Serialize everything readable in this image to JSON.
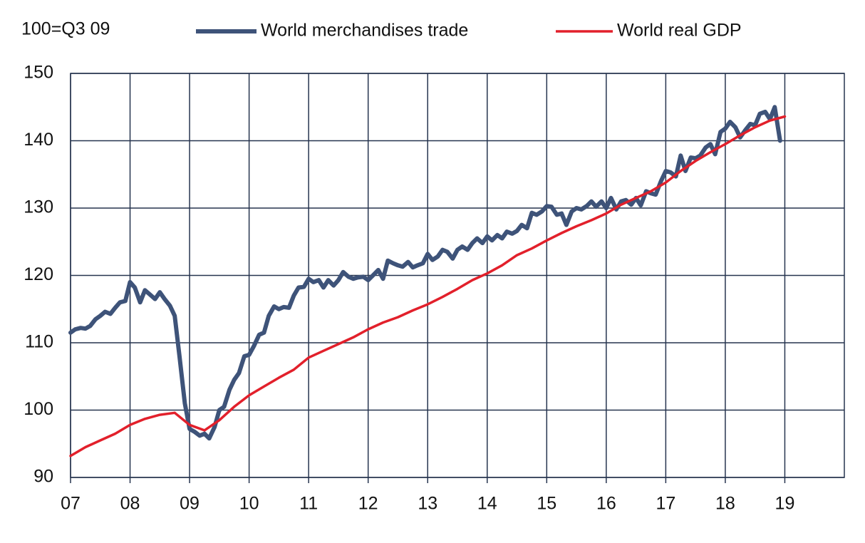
{
  "chart_data": {
    "type": "line",
    "subtitle": "100=Q3 09",
    "xlim": [
      7,
      20
    ],
    "xticks": [
      {
        "value": 7,
        "label": "07"
      },
      {
        "value": 8,
        "label": "08"
      },
      {
        "value": 9,
        "label": "09"
      },
      10,
      11,
      12,
      13,
      14,
      15,
      16,
      17,
      18,
      19
    ],
    "ylim": [
      90,
      150
    ],
    "yticks": [
      90,
      100,
      110,
      120,
      130,
      140,
      150
    ],
    "grid": true,
    "legend": "top",
    "series": [
      {
        "name": "World merchandises trade",
        "color": "#3e5379",
        "x": [
          7,
          7.08,
          7.17,
          7.25,
          7.33,
          7.42,
          7.5,
          7.58,
          7.67,
          7.75,
          7.83,
          7.92,
          8,
          8.08,
          8.17,
          8.25,
          8.33,
          8.42,
          8.5,
          8.58,
          8.67,
          8.75,
          8.83,
          8.92,
          9,
          9.08,
          9.17,
          9.25,
          9.33,
          9.42,
          9.5,
          9.58,
          9.67,
          9.75,
          9.83,
          9.92,
          10,
          10.08,
          10.17,
          10.25,
          10.33,
          10.42,
          10.5,
          10.58,
          10.67,
          10.75,
          10.83,
          10.92,
          11,
          11.08,
          11.17,
          11.25,
          11.33,
          11.42,
          11.5,
          11.58,
          11.67,
          11.75,
          11.83,
          11.92,
          12,
          12.08,
          12.17,
          12.25,
          12.33,
          12.42,
          12.5,
          12.58,
          12.67,
          12.75,
          12.83,
          12.92,
          13,
          13.08,
          13.17,
          13.25,
          13.33,
          13.42,
          13.5,
          13.58,
          13.67,
          13.75,
          13.83,
          13.92,
          14,
          14.08,
          14.17,
          14.25,
          14.33,
          14.42,
          14.5,
          14.58,
          14.67,
          14.75,
          14.83,
          14.92,
          15,
          15.08,
          15.17,
          15.25,
          15.33,
          15.42,
          15.5,
          15.58,
          15.67,
          15.75,
          15.83,
          15.92,
          16,
          16.08,
          16.17,
          16.25,
          16.33,
          16.42,
          16.5,
          16.58,
          16.67,
          16.75,
          16.83,
          16.92,
          17,
          17.08,
          17.17,
          17.25,
          17.33,
          17.42,
          17.5,
          17.58,
          17.67,
          17.75,
          17.83,
          17.92,
          18,
          18.08,
          18.17,
          18.25,
          18.33,
          18.42,
          18.5,
          18.58,
          18.67,
          18.75,
          18.83,
          18.92
        ],
        "values": [
          111.5,
          112,
          112.2,
          112.1,
          112.5,
          113.5,
          114,
          114.6,
          114.3,
          115.2,
          116,
          116.2,
          119,
          118.2,
          116,
          117.8,
          117.2,
          116.5,
          117.5,
          116.5,
          115.5,
          114,
          108,
          101,
          97.2,
          96.8,
          96.2,
          96.5,
          95.8,
          97.5,
          100,
          100.5,
          103,
          104.5,
          105.5,
          108,
          108.2,
          109.5,
          111.2,
          111.5,
          114,
          115.4,
          115,
          115.3,
          115.2,
          117,
          118.2,
          118.3,
          119.5,
          119,
          119.3,
          118.2,
          119.3,
          118.5,
          119.3,
          120.5,
          119.8,
          119.5,
          119.7,
          119.8,
          119.3,
          120,
          120.8,
          119.5,
          122.2,
          121.8,
          121.5,
          121.3,
          122,
          121.2,
          121.5,
          121.8,
          123.2,
          122.3,
          122.8,
          123.8,
          123.5,
          122.5,
          123.8,
          124.3,
          123.8,
          124.8,
          125.5,
          124.8,
          125.8,
          125.2,
          126,
          125.5,
          126.5,
          126.2,
          126.6,
          127.5,
          127,
          129.3,
          129,
          129.5,
          130.3,
          130.2,
          129,
          129.2,
          127.5,
          129.5,
          130,
          129.8,
          130.3,
          131,
          130.2,
          131,
          130,
          131.5,
          129.8,
          131,
          131.2,
          130.5,
          131.5,
          130.4,
          132.5,
          132.2,
          132,
          134,
          135.5,
          135.3,
          134.7,
          137.8,
          135.5,
          137.5,
          137.4,
          137.8,
          139,
          139.5,
          138,
          141.3,
          141.8,
          142.8,
          142,
          140.5,
          141.5,
          142.5,
          142.3,
          144,
          144.3,
          143.2,
          145,
          140
        ]
      },
      {
        "name": "World real GDP",
        "color": "#e2202b",
        "x": [
          7,
          7.25,
          7.5,
          7.75,
          8,
          8.25,
          8.5,
          8.75,
          9,
          9.25,
          9.5,
          9.75,
          10,
          10.25,
          10.5,
          10.75,
          11,
          11.25,
          11.5,
          11.75,
          12,
          12.25,
          12.5,
          12.75,
          13,
          13.25,
          13.5,
          13.75,
          14,
          14.25,
          14.5,
          14.75,
          15,
          15.25,
          15.5,
          15.75,
          16,
          16.25,
          16.5,
          16.75,
          17,
          17.25,
          17.5,
          17.75,
          18,
          18.25,
          18.5,
          18.75,
          19
        ],
        "values": [
          93.2,
          94.5,
          95.5,
          96.5,
          97.8,
          98.7,
          99.3,
          99.6,
          97.8,
          97,
          98.5,
          100.5,
          102.2,
          103.5,
          104.8,
          106,
          107.8,
          108.8,
          109.8,
          110.8,
          112,
          113,
          113.8,
          114.8,
          115.7,
          116.8,
          118,
          119.3,
          120.3,
          121.5,
          123,
          124,
          125.2,
          126.3,
          127.3,
          128.2,
          129.2,
          130.5,
          131.5,
          132.5,
          133.8,
          135.5,
          137,
          138.3,
          139.5,
          140.8,
          142,
          143,
          143.6
        ]
      }
    ]
  }
}
